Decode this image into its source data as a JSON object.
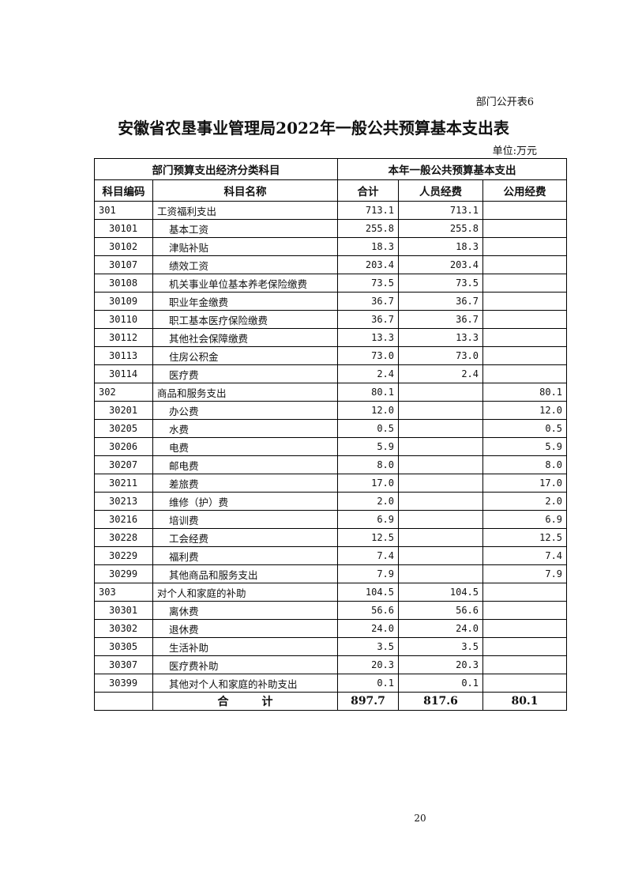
{
  "form_label": "部门公开表6",
  "title": "安徽省农垦事业管理局2022年一般公共预算基本支出表",
  "unit": "单位:万元",
  "headers": {
    "group_left": "部门预算支出经济分类科目",
    "group_right": "本年一般公共预算基本支出",
    "code": "科目编码",
    "name": "科目名称",
    "total": "合计",
    "personnel": "人员经费",
    "public": "公用经费"
  },
  "rows": [
    {
      "code": "301",
      "name": "工资福利支出",
      "total": "713.1",
      "personnel": "713.1",
      "public": ""
    },
    {
      "code": "30101",
      "name": "基本工资",
      "total": "255.8",
      "personnel": "255.8",
      "public": ""
    },
    {
      "code": "30102",
      "name": "津贴补贴",
      "total": "18.3",
      "personnel": "18.3",
      "public": ""
    },
    {
      "code": "30107",
      "name": "绩效工资",
      "total": "203.4",
      "personnel": "203.4",
      "public": ""
    },
    {
      "code": "30108",
      "name": "机关事业单位基本养老保险缴费",
      "total": "73.5",
      "personnel": "73.5",
      "public": ""
    },
    {
      "code": "30109",
      "name": "职业年金缴费",
      "total": "36.7",
      "personnel": "36.7",
      "public": ""
    },
    {
      "code": "30110",
      "name": "职工基本医疗保险缴费",
      "total": "36.7",
      "personnel": "36.7",
      "public": ""
    },
    {
      "code": "30112",
      "name": "其他社会保障缴费",
      "total": "13.3",
      "personnel": "13.3",
      "public": ""
    },
    {
      "code": "30113",
      "name": "住房公积金",
      "total": "73.0",
      "personnel": "73.0",
      "public": ""
    },
    {
      "code": "30114",
      "name": "医疗费",
      "total": "2.4",
      "personnel": "2.4",
      "public": ""
    },
    {
      "code": "302",
      "name": "商品和服务支出",
      "total": "80.1",
      "personnel": "",
      "public": "80.1"
    },
    {
      "code": "30201",
      "name": "办公费",
      "total": "12.0",
      "personnel": "",
      "public": "12.0"
    },
    {
      "code": "30205",
      "name": "水费",
      "total": "0.5",
      "personnel": "",
      "public": "0.5"
    },
    {
      "code": "30206",
      "name": "电费",
      "total": "5.9",
      "personnel": "",
      "public": "5.9"
    },
    {
      "code": "30207",
      "name": "邮电费",
      "total": "8.0",
      "personnel": "",
      "public": "8.0"
    },
    {
      "code": "30211",
      "name": "差旅费",
      "total": "17.0",
      "personnel": "",
      "public": "17.0"
    },
    {
      "code": "30213",
      "name": "维修（护）费",
      "total": "2.0",
      "personnel": "",
      "public": "2.0"
    },
    {
      "code": "30216",
      "name": "培训费",
      "total": "6.9",
      "personnel": "",
      "public": "6.9"
    },
    {
      "code": "30228",
      "name": "工会经费",
      "total": "12.5",
      "personnel": "",
      "public": "12.5"
    },
    {
      "code": "30229",
      "name": "福利费",
      "total": "7.4",
      "personnel": "",
      "public": "7.4"
    },
    {
      "code": "30299",
      "name": "其他商品和服务支出",
      "total": "7.9",
      "personnel": "",
      "public": "7.9"
    },
    {
      "code": "303",
      "name": "对个人和家庭的补助",
      "total": "104.5",
      "personnel": "104.5",
      "public": ""
    },
    {
      "code": "30301",
      "name": "离休费",
      "total": "56.6",
      "personnel": "56.6",
      "public": ""
    },
    {
      "code": "30302",
      "name": "退休费",
      "total": "24.0",
      "personnel": "24.0",
      "public": ""
    },
    {
      "code": "30305",
      "name": "生活补助",
      "total": "3.5",
      "personnel": "3.5",
      "public": ""
    },
    {
      "code": "30307",
      "name": "医疗费补助",
      "total": "20.3",
      "personnel": "20.3",
      "public": ""
    },
    {
      "code": "30399",
      "name": "其他对个人和家庭的补助支出",
      "total": "0.1",
      "personnel": "0.1",
      "public": ""
    }
  ],
  "footer": {
    "label": "合　　　计",
    "total": "897.7",
    "personnel": "817.6",
    "public": "80.1"
  },
  "page_number": "20"
}
